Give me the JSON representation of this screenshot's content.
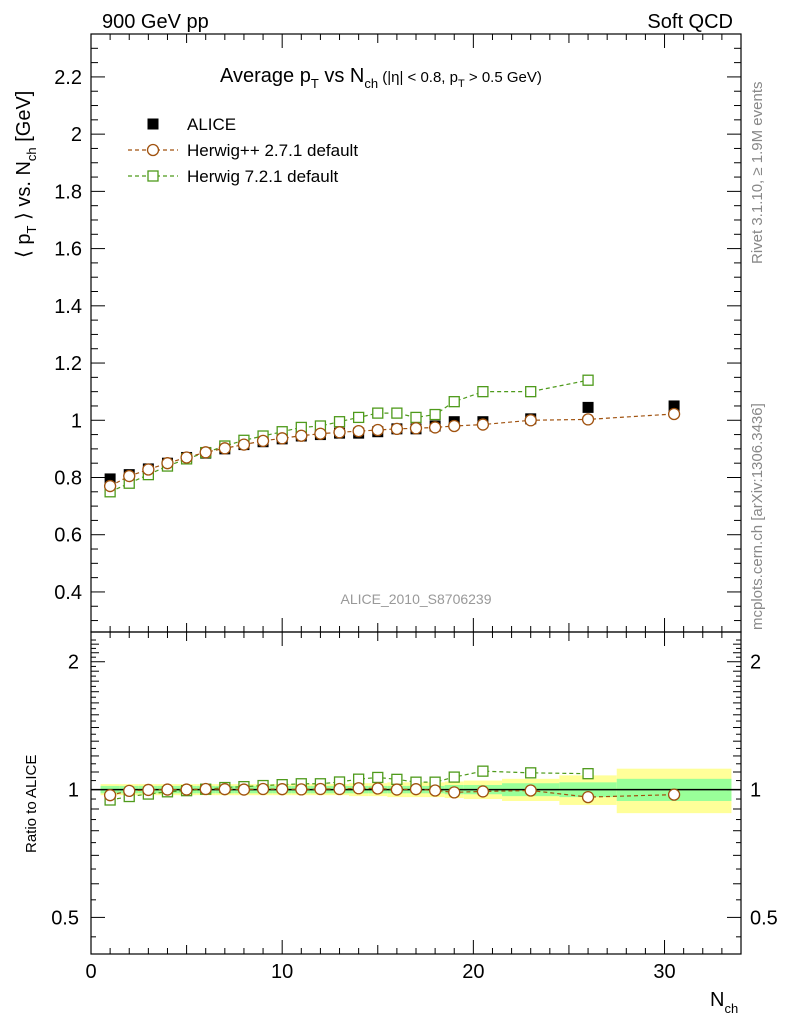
{
  "header": {
    "left": "900 GeV pp",
    "right": "Soft QCD"
  },
  "side": {
    "top": "Rivet 3.1.10, ≥ 1.9M events",
    "bottom": "mcplots.cern.ch [arXiv:1306.3436]"
  },
  "chart_data": {
    "type": "scatter",
    "title_main": "Average p",
    "title_sub1": "T",
    "title_mid": " vs N",
    "title_sub2": "ch",
    "title_cut": " (|η| < 0.8, p",
    "title_sub3": "T",
    "title_cut2": " > 0.5 GeV)",
    "watermark": "ALICE_2010_S8706239",
    "ylabel_main": "⟨ p",
    "ylabel_sub1": "T",
    "ylabel_mid": " ⟩ vs. N",
    "ylabel_sub2": "ch",
    "ylabel_unit": " [GeV]",
    "ratio_ylabel": "Ratio to ALICE",
    "xlabel_main": "N",
    "xlabel_sub": "ch",
    "xlim": [
      0,
      34
    ],
    "ylim": [
      0.26,
      2.35
    ],
    "ratio_ylim": [
      0.41,
      2.35
    ],
    "xticks": [
      0,
      10,
      20,
      30
    ],
    "yticks": [
      0.4,
      0.6,
      0.8,
      1.0,
      1.2,
      1.4,
      1.6,
      1.8,
      2.0,
      2.2
    ],
    "ytick_labels": [
      "0.4",
      "0.6",
      "0.8",
      "1",
      "1.2",
      "1.4",
      "1.6",
      "1.8",
      "2",
      "2.2"
    ],
    "ratio_yticks": [
      0.5,
      1,
      2
    ],
    "ratio_ytick_labels": [
      "0.5",
      "1",
      "2"
    ],
    "legend_position": "top-left",
    "series": [
      {
        "name": "ALICE",
        "color": "#000000",
        "marker": "filled-square",
        "x": [
          1,
          2,
          3,
          4,
          5,
          6,
          7,
          8,
          9,
          10,
          11,
          12,
          13,
          14,
          15,
          16,
          17,
          18,
          19,
          20.5,
          23,
          26,
          30.5
        ],
        "y": [
          0.795,
          0.81,
          0.83,
          0.85,
          0.87,
          0.885,
          0.9,
          0.915,
          0.925,
          0.935,
          0.945,
          0.95,
          0.955,
          0.955,
          0.96,
          0.97,
          0.97,
          0.98,
          0.995,
          0.995,
          1.005,
          1.045,
          1.05
        ]
      },
      {
        "name": "Herwig++ 2.7.1 default",
        "color": "#a0520f",
        "marker": "open-circle",
        "x": [
          1,
          2,
          3,
          4,
          5,
          6,
          7,
          8,
          9,
          10,
          11,
          12,
          13,
          14,
          15,
          16,
          17,
          18,
          19,
          20.5,
          23,
          26,
          30.5
        ],
        "y": [
          0.77,
          0.805,
          0.828,
          0.85,
          0.87,
          0.888,
          0.902,
          0.915,
          0.928,
          0.937,
          0.946,
          0.953,
          0.958,
          0.962,
          0.966,
          0.97,
          0.972,
          0.975,
          0.98,
          0.985,
          1.0,
          1.003,
          1.022
        ],
        "ratio": [
          0.97,
          0.993,
          0.998,
          1.0,
          1.0,
          1.003,
          1.002,
          1.0,
          1.003,
          1.002,
          1.001,
          1.003,
          1.003,
          1.007,
          1.006,
          1.0,
          1.002,
          0.995,
          0.985,
          0.99,
          0.995,
          0.96,
          0.973
        ]
      },
      {
        "name": "Herwig 7.2.1 default",
        "color": "#4e9a1b",
        "marker": "open-square",
        "x": [
          1,
          2,
          3,
          4,
          5,
          6,
          7,
          8,
          9,
          10,
          11,
          12,
          13,
          14,
          15,
          16,
          17,
          18,
          19,
          20.5,
          23,
          26
        ],
        "y": [
          0.75,
          0.78,
          0.81,
          0.84,
          0.865,
          0.887,
          0.91,
          0.93,
          0.945,
          0.96,
          0.975,
          0.98,
          0.995,
          1.01,
          1.025,
          1.025,
          1.01,
          1.02,
          1.065,
          1.1,
          1.1,
          1.14
        ],
        "ratio": [
          0.945,
          0.963,
          0.976,
          0.988,
          0.994,
          1.002,
          1.011,
          1.016,
          1.022,
          1.027,
          1.032,
          1.032,
          1.042,
          1.058,
          1.068,
          1.057,
          1.041,
          1.041,
          1.07,
          1.105,
          1.095,
          1.09
        ]
      }
    ],
    "ratio_bands": {
      "edges": [
        0.5,
        1.5,
        2.5,
        3.5,
        4.5,
        5.5,
        6.5,
        7.5,
        8.5,
        9.5,
        10.5,
        11.5,
        12.5,
        13.5,
        14.5,
        15.5,
        16.5,
        17.5,
        18.5,
        19.5,
        21.5,
        24.5,
        27.5,
        33.5
      ],
      "green": [
        0.02,
        0.02,
        0.02,
        0.02,
        0.02,
        0.02,
        0.02,
        0.02,
        0.02,
        0.02,
        0.02,
        0.02,
        0.02,
        0.02,
        0.02,
        0.02,
        0.02,
        0.02,
        0.025,
        0.025,
        0.035,
        0.04,
        0.06
      ],
      "yellow": [
        0.03,
        0.03,
        0.03,
        0.03,
        0.03,
        0.03,
        0.03,
        0.03,
        0.03,
        0.03,
        0.03,
        0.03,
        0.03,
        0.035,
        0.035,
        0.04,
        0.04,
        0.04,
        0.045,
        0.05,
        0.06,
        0.08,
        0.12
      ]
    }
  }
}
